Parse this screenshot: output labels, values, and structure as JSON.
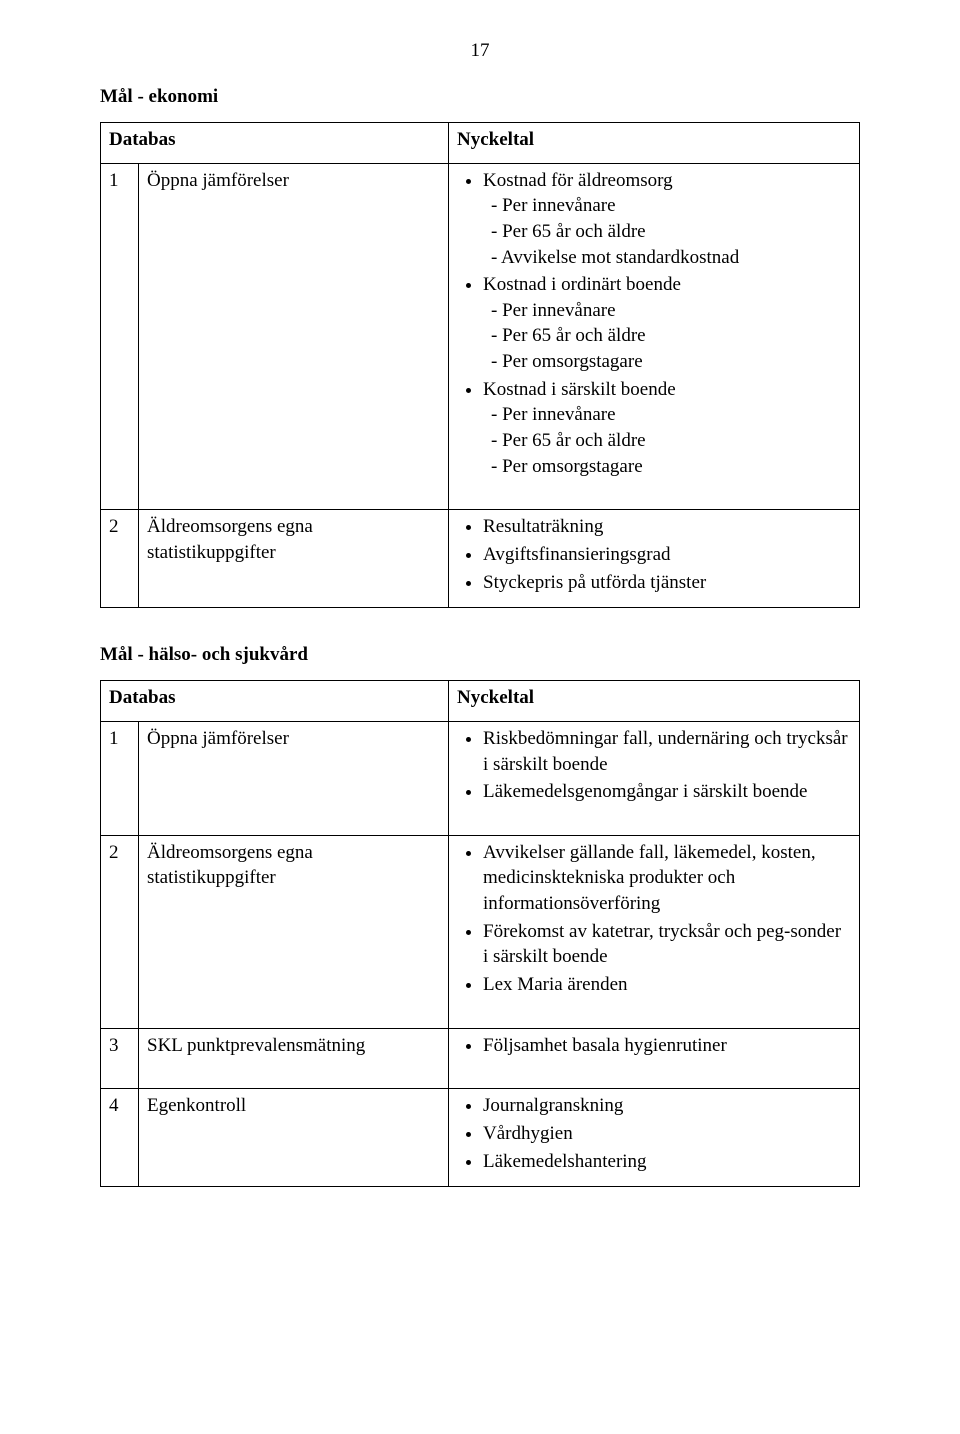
{
  "page_number": "17",
  "sections": {
    "ekonomi": {
      "title": "Mål - ekonomi",
      "headers": {
        "db": "Databas",
        "ny": "Nyckeltal"
      },
      "rows": {
        "r1": {
          "idx": "1",
          "db": "Öppna jämförelser",
          "items": {
            "i1": {
              "label": "Kostnad för äldreomsorg",
              "subs": {
                "s1": "Per innevånare",
                "s2": "Per 65 år och äldre",
                "s3": "Avvikelse mot standardkostnad"
              }
            },
            "i2": {
              "label": "Kostnad i ordinärt boende",
              "subs": {
                "s1": "Per innevånare",
                "s2": "Per 65 år och äldre",
                "s3": "Per omsorgstagare"
              }
            },
            "i3": {
              "label": "Kostnad i särskilt boende",
              "subs": {
                "s1": "Per innevånare",
                "s2": "Per 65 år och äldre",
                "s3": "Per omsorgstagare"
              }
            }
          }
        },
        "r2": {
          "idx": "2",
          "db": "Äldreomsorgens egna statistikuppgifter",
          "items": {
            "i1": {
              "label": "Resultaträkning"
            },
            "i2": {
              "label": "Avgiftsfinansieringsgrad"
            },
            "i3": {
              "label": "Styckepris på utförda tjänster"
            }
          }
        }
      }
    },
    "halso": {
      "title": "Mål - hälso- och sjukvård",
      "headers": {
        "db": "Databas",
        "ny": "Nyckeltal"
      },
      "rows": {
        "r1": {
          "idx": "1",
          "db": "Öppna jämförelser",
          "items": {
            "i1": {
              "label": "Riskbedömningar fall, undernäring och trycksår i särskilt boende"
            },
            "i2": {
              "label": "Läkemedelsgenomgångar i särskilt boende"
            }
          }
        },
        "r2": {
          "idx": "2",
          "db": "Äldreomsorgens egna statistikuppgifter",
          "items": {
            "i1": {
              "label": "Avvikelser gällande fall, läkemedel, kosten, medicinsktekniska produkter och informationsöverföring"
            },
            "i2": {
              "label": "Förekomst av katetrar, trycksår och peg-sonder i särskilt boende"
            },
            "i3": {
              "label": "Lex Maria ärenden"
            }
          }
        },
        "r3": {
          "idx": "3",
          "db": "SKL punktprevalensmätning",
          "items": {
            "i1": {
              "label": "Följsamhet basala hygienrutiner"
            }
          }
        },
        "r4": {
          "idx": "4",
          "db": "Egenkontroll",
          "items": {
            "i1": {
              "label": "Journalgranskning"
            },
            "i2": {
              "label": "Vårdhygien"
            },
            "i3": {
              "label": "Läkemedelshantering"
            }
          }
        }
      }
    }
  }
}
